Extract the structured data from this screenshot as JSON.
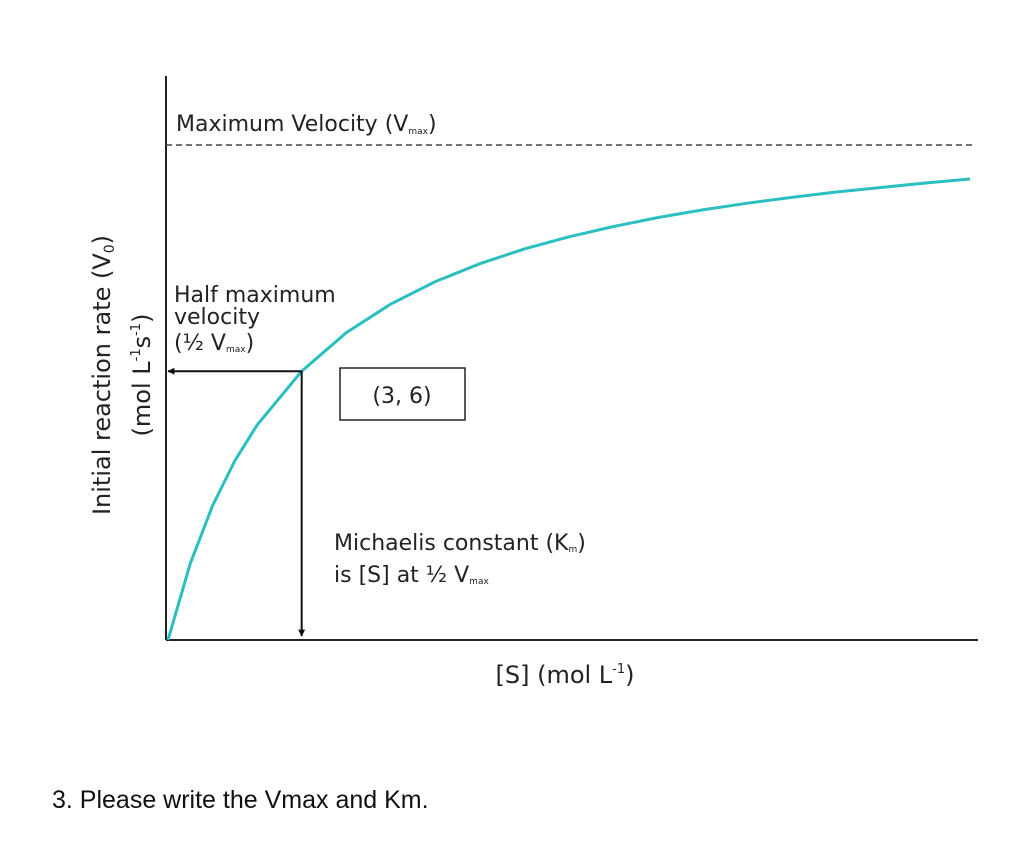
{
  "chart_data": {
    "type": "line",
    "title": "",
    "xlabel": {
      "main": "[S] (mol L",
      "sup": "-1",
      "end": ")"
    },
    "ylabel": {
      "line1": {
        "main": "Initial reaction rate (V",
        "sub": "0",
        "end": ")"
      },
      "line2": {
        "main": "(mol L",
        "sup1": "-1",
        "mid": "s",
        "sup2": "-1",
        "end": ")"
      }
    },
    "grid": false,
    "xlim": [
      0,
      18
    ],
    "ylim": [
      0,
      12.5
    ],
    "vmax": 12,
    "km": 3,
    "series": [
      {
        "x": [
          0,
          0.5,
          1,
          1.5,
          2,
          3,
          4,
          5,
          6,
          7,
          8,
          9,
          10,
          11,
          12,
          13,
          14,
          15,
          16,
          17,
          18
        ],
        "values": [
          0,
          1.71,
          3.0,
          4.0,
          4.8,
          6.0,
          6.86,
          7.5,
          8.0,
          8.4,
          8.73,
          9.0,
          9.23,
          9.43,
          9.6,
          9.75,
          9.88,
          10.0,
          10.1,
          10.2,
          10.29
        ]
      }
    ],
    "colors": {
      "curve": "#2bbfbf",
      "axes": "#222222",
      "dashed": "#444444",
      "arrows": "#111111"
    },
    "annotations": {
      "vmax": {
        "main": "Maximum Velocity (V",
        "sub": "max",
        "end": ")"
      },
      "half": {
        "line1": "Half maximum",
        "line2": "velocity",
        "line3_open": "(",
        "frac": "½",
        "line3_v": " V",
        "sub": "max",
        "end": ")"
      },
      "point_box": "(3, 6)",
      "km": {
        "line1_main": "Michaelis constant (K",
        "line1_sub": "m",
        "line1_end": ")",
        "line2_main": "is [S] at ",
        "frac": "½",
        "line2_v": " V",
        "sub": "max"
      }
    }
  },
  "question": "3. Please write the Vmax and Km."
}
